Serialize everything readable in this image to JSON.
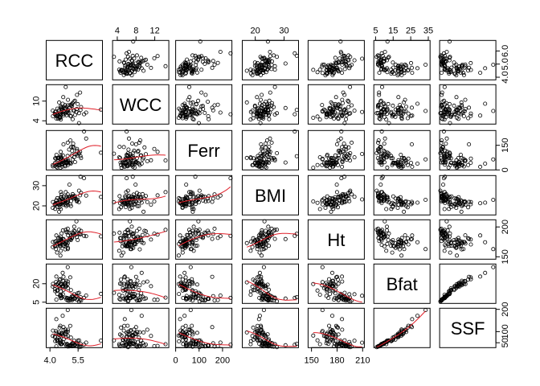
{
  "chart_data": {
    "type": "scatter",
    "kind": "scatterplot-matrix",
    "variables": [
      "RCC",
      "WCC",
      "Ferr",
      "BMI",
      "Ht",
      "Bfat",
      "SSF"
    ],
    "ranges": {
      "RCC": [
        3.8,
        6.8
      ],
      "WCC": [
        3.0,
        15.0
      ],
      "Ferr": [
        0,
        240
      ],
      "BMI": [
        15.5,
        35
      ],
      "Ht": [
        146,
        212
      ],
      "Bfat": [
        4,
        36
      ],
      "SSF": [
        28,
        205
      ]
    },
    "axes": {
      "bottom": [
        {
          "variable": "RCC",
          "ticks": [
            4.0,
            5.5
          ],
          "labels": [
            "4.0",
            "5.5"
          ]
        },
        {
          "variable": "Ferr",
          "ticks": [
            0,
            100,
            200
          ],
          "labels": [
            "0",
            "100",
            "200"
          ]
        },
        {
          "variable": "Ht",
          "ticks": [
            150,
            180,
            210
          ],
          "labels": [
            "150",
            "180",
            "210"
          ]
        }
      ],
      "top": [
        {
          "variable": "WCC",
          "ticks": [
            4,
            8,
            12
          ],
          "labels": [
            "4",
            "8",
            "12"
          ]
        },
        {
          "variable": "BMI",
          "ticks": [
            20,
            30
          ],
          "labels": [
            "20",
            "30"
          ]
        },
        {
          "variable": "Bfat",
          "ticks": [
            5,
            15,
            25,
            35
          ],
          "labels": [
            "5",
            "15",
            "25",
            "35"
          ]
        }
      ],
      "left": [
        {
          "variable": "WCC",
          "ticks": [
            4,
            10
          ],
          "labels": [
            "4",
            "10"
          ]
        },
        {
          "variable": "BMI",
          "ticks": [
            20,
            30
          ],
          "labels": [
            "20",
            "30"
          ]
        },
        {
          "variable": "Bfat",
          "ticks": [
            5,
            20
          ],
          "labels": [
            "5",
            "20"
          ]
        }
      ],
      "right": [
        {
          "variable": "RCC",
          "ticks": [
            4.0,
            5.0,
            6.0
          ],
          "labels": [
            "4.0",
            "5.0",
            "6.0"
          ]
        },
        {
          "variable": "Ferr",
          "ticks": [
            0,
            150
          ],
          "labels": [
            "0",
            "150"
          ]
        },
        {
          "variable": "Ht",
          "ticks": [
            150,
            200
          ],
          "labels": [
            "150",
            "200"
          ]
        },
        {
          "variable": "SSF",
          "ticks": [
            50,
            100,
            200
          ],
          "labels": [
            "50",
            "100",
            "200"
          ]
        }
      ]
    },
    "lower_panel_smoother": true,
    "smoother_color": "#e0202a",
    "point_color": "#000000",
    "grid": false,
    "legend": "none",
    "data": {
      "RCC": [
        4.82,
        4.32,
        4.16,
        4.55,
        4.15,
        4.27,
        4.44,
        4.87,
        4.88,
        4.73,
        4.68,
        4.26,
        4.51,
        4.82,
        4.81,
        4.95,
        5.08,
        4.48,
        4.96,
        4.72,
        4.52,
        4.96,
        4.35,
        4.62,
        4.58,
        4.28,
        4.62,
        4.41,
        4.49,
        4.58,
        4.95,
        4.34,
        5.12,
        4.51,
        4.56,
        4.66,
        4.71,
        4.81,
        4.38,
        4.72,
        4.91,
        4.39,
        4.53,
        5.16,
        4.63,
        4.34,
        4.62,
        4.58,
        4.57,
        4.69,
        5.24,
        5.33,
        5.02,
        5.09,
        5.34,
        5.43,
        5.61,
        4.94,
        5.21,
        5.29,
        5.66,
        5.13,
        5.41,
        6.72,
        5.28,
        5.55,
        5.18,
        4.88,
        5.04,
        5.44,
        5.82,
        4.95,
        5.63,
        5.21,
        5.48,
        5.93,
        4.84,
        5.55
      ],
      "WCC": [
        7.6,
        6.8,
        5.4,
        6.2,
        7.1,
        5.9,
        4.6,
        8.3,
        6.6,
        5.7,
        9.2,
        6.1,
        4.8,
        7.9,
        8.8,
        6.4,
        5.5,
        7.2,
        10.4,
        6.9,
        5.2,
        7.4,
        6.0,
        8.1,
        4.4,
        6.7,
        7.8,
        5.8,
        9.6,
        6.3,
        7.0,
        5.6,
        8.6,
        6.5,
        4.9,
        7.3,
        11.2,
        6.2,
        5.3,
        8.0,
        6.8,
        7.7,
        5.1,
        9.0,
        6.6,
        4.7,
        7.5,
        5.9,
        8.4,
        6.1,
        7.2,
        10.1,
        6.4,
        8.9,
        5.8,
        7.6,
        12.6,
        6.9,
        9.4,
        7.1,
        8.2,
        5.4,
        6.7,
        7.4,
        9.8,
        6.3,
        8.5,
        5.7,
        7.9,
        11.9,
        6.0,
        8.7,
        7.3,
        4.5,
        9.1,
        6.5,
        14.3,
        3.3
      ],
      "Ferr": [
        60,
        68,
        21,
        69,
        29,
        42,
        73,
        44,
        41,
        44,
        38,
        26,
        30,
        48,
        30,
        29,
        43,
        34,
        53,
        59,
        43,
        40,
        92,
        48,
        77,
        71,
        37,
        71,
        73,
        85,
        64,
        19,
        39,
        41,
        13,
        20,
        59,
        22,
        30,
        156,
        44,
        14,
        47,
        88,
        32,
        45,
        73,
        65,
        110,
        88,
        160,
        96,
        124,
        180,
        48,
        117,
        110,
        85,
        64,
        77,
        72,
        139,
        97,
        105,
        137,
        102,
        116,
        62,
        45,
        128,
        234,
        166,
        84,
        141,
        88,
        191,
        58,
        99
      ],
      "BMI": [
        20.6,
        20.7,
        21.9,
        21.9,
        19.0,
        21.0,
        21.3,
        19.9,
        23.7,
        24.7,
        21.6,
        20.6,
        19.3,
        22.3,
        22.4,
        20.4,
        20.8,
        20.6,
        21.9,
        22.3,
        20.7,
        23.6,
        22.8,
        24.3,
        18.4,
        18.5,
        21.0,
        19.4,
        17.1,
        20.9,
        23.0,
        21.3,
        19.9,
        22.9,
        22.2,
        23.4,
        20.6,
        21.5,
        21.5,
        22.0,
        21.4,
        23.8,
        22.7,
        24.2,
        23.3,
        22.8,
        25.6,
        26.8,
        24.2,
        22.3,
        23.6,
        24.9,
        24.5,
        24.1,
        23.9,
        22.6,
        25.2,
        22.3,
        25.8,
        24.5,
        26.4,
        22.4,
        23.2,
        24.4,
        23.6,
        27.5,
        24.7,
        24.6,
        30.5,
        22.2,
        33.7,
        25.7,
        34.4,
        24.8,
        23.1,
        25.1,
        26.8,
        21.8
      ],
      "Ht": [
        172.1,
        163.0,
        174.8,
        170.6,
        166.4,
        167.5,
        181.6,
        175.4,
        174.2,
        168.5,
        174.4,
        168.4,
        181.0,
        171.1,
        162.4,
        173.0,
        179.0,
        173.7,
        186.0,
        174.5,
        172.5,
        164.8,
        168.6,
        177.8,
        160.0,
        175.5,
        176.1,
        174.0,
        173.0,
        168.2,
        162.9,
        185.8,
        178.1,
        170.8,
        152.0,
        175.4,
        178.8,
        167.5,
        157.0,
        179.9,
        169.9,
        171.6,
        167.5,
        181.8,
        177.3,
        176.4,
        189.2,
        179.9,
        183.9,
        194.4,
        188.1,
        192.7,
        190.4,
        181.6,
        186.4,
        183.1,
        187.2,
        190.9,
        186.6,
        200.4,
        193.4,
        185.8,
        209.4,
        184.1,
        193.6,
        195.4,
        181.6,
        191.2,
        179.7,
        188.7,
        185.0,
        197.1,
        188.5,
        190.4,
        178.0,
        184.5,
        195.2,
        188.9
      ],
      "Bfat": [
        19.75,
        21.3,
        19.88,
        23.66,
        17.64,
        15.58,
        19.99,
        22.43,
        17.95,
        15.07,
        28.83,
        18.08,
        23.3,
        17.71,
        18.77,
        19.83,
        25.16,
        18.04,
        21.79,
        22.25,
        16.25,
        16.38,
        19.35,
        19.2,
        11.07,
        13.94,
        19.81,
        14.7,
        21.11,
        13.84,
        33.43,
        25.82,
        14.85,
        17.67,
        19.72,
        18.07,
        17.98,
        20.69,
        14.48,
        25.63,
        8.47,
        11.64,
        10.05,
        9.56,
        8.46,
        7.1,
        9.61,
        8.19,
        10.36,
        11.47,
        9.95,
        8.13,
        6.31,
        6.76,
        7.93,
        9.56,
        6.97,
        8.25,
        9.51,
        11.46,
        6.32,
        8.01,
        10.23,
        11.78,
        7.75,
        5.63,
        6.59,
        7.12,
        7.92,
        6.96,
        8.51,
        6.44,
        9.07,
        7.59,
        12.2,
        10.37,
        8.73,
        12.61
      ],
      "SSF": [
        109.1,
        102.8,
        104.6,
        126.4,
        80.3,
        75.2,
        87.2,
        97.9,
        75.1,
        65.1,
        171.1,
        76.8,
        117.8,
        90.2,
        97.5,
        99.9,
        125.9,
        85.2,
        108.6,
        106.9,
        63.6,
        80.2,
        94.5,
        87.8,
        43.5,
        57.4,
        92.8,
        64.0,
        96.4,
        58.7,
        196.6,
        155.8,
        73.3,
        86.0,
        82.1,
        83.7,
        80.9,
        89.2,
        61.0,
        120.2,
        44.8,
        56.0,
        47.8,
        44.4,
        44.4,
        34.0,
        45.1,
        43.4,
        52.0,
        53.6,
        47.6,
        41.7,
        33.6,
        34.6,
        39.8,
        45.4,
        35.9,
        41.6,
        48.8,
        58.9,
        32.2,
        39.2,
        50.3,
        59.4,
        37.5,
        30.3,
        34.3,
        36.4,
        39.0,
        34.4,
        41.4,
        33.1,
        44.8,
        37.5,
        59.0,
        50.6,
        43.7,
        60.7
      ]
    }
  }
}
